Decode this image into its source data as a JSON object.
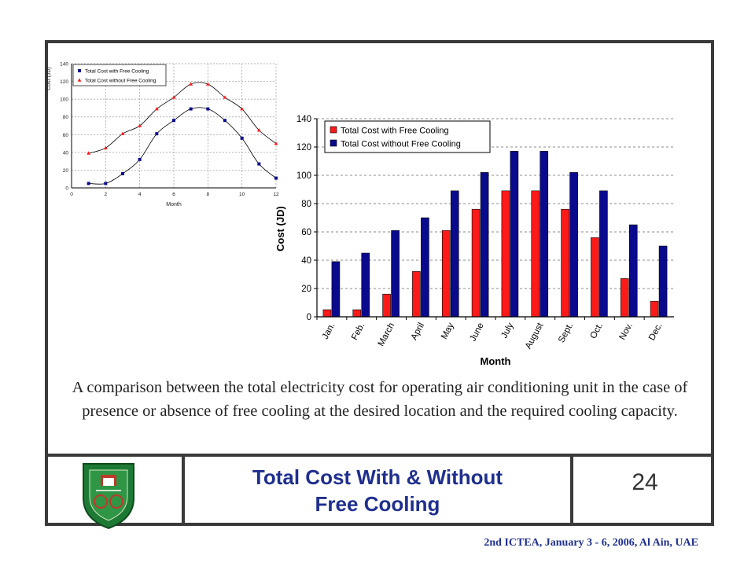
{
  "caption": "A comparison between the total electricity cost for operating air conditioning unit in the case of presence or absence of free cooling at the desired location and the required cooling capacity.",
  "footer": {
    "title_line1": "Total Cost With & Without",
    "title_line2": "Free Cooling",
    "page_number": "24",
    "conference": "2nd ICTEA, January 3 - 6, 2006, Al Ain, UAE"
  },
  "colors": {
    "red": "#ff1a1a",
    "navy": "#0a0a8c",
    "title_blue": "#1f2f8f",
    "logo_green": "#1d7a34"
  },
  "chart_data": [
    {
      "type": "scatter",
      "xlabel": "Month",
      "ylabel": "Cost (JD)",
      "xlim": [
        0,
        12
      ],
      "ylim": [
        0,
        140
      ],
      "xticks": [
        "0",
        "2",
        "4",
        "6",
        "8",
        "10",
        "12"
      ],
      "yticks": [
        "0",
        "20",
        "40",
        "60",
        "80",
        "100",
        "120",
        "140"
      ],
      "grid": true,
      "legend_position": "top-left",
      "series": [
        {
          "name": "Total Cost with Free Cooling",
          "color": "#0a0a8c",
          "marker": "square",
          "x": [
            1,
            2,
            3,
            4,
            5,
            6,
            7,
            8,
            9,
            10,
            11,
            12
          ],
          "y": [
            5,
            5,
            16,
            32,
            61,
            76,
            89,
            89,
            76,
            56,
            27,
            11
          ]
        },
        {
          "name": "Total Cost without Free Cooling",
          "color": "#ff1a1a",
          "marker": "triangle",
          "x": [
            1,
            2,
            3,
            4,
            5,
            6,
            7,
            8,
            9,
            10,
            11,
            12
          ],
          "y": [
            39,
            45,
            61,
            70,
            89,
            102,
            117,
            117,
            102,
            89,
            65,
            50
          ]
        }
      ]
    },
    {
      "type": "bar",
      "xlabel": "Month",
      "ylabel": "Cost (JD)",
      "ylim": [
        0,
        140
      ],
      "yticks": [
        "0",
        "20",
        "40",
        "60",
        "80",
        "100",
        "120",
        "140"
      ],
      "grid": true,
      "legend_position": "top-left",
      "categories": [
        "Jan.",
        "Feb.",
        "March",
        "April",
        "May",
        "June",
        "July",
        "August",
        "Sept.",
        "Oct.",
        "Nov.",
        "Dec."
      ],
      "series": [
        {
          "name": "Total Cost with Free Cooling",
          "color": "#ff1a1a",
          "values": [
            5,
            5,
            16,
            32,
            61,
            76,
            89,
            89,
            76,
            56,
            27,
            11
          ]
        },
        {
          "name": "Total Cost without Free Cooling",
          "color": "#0a0a8c",
          "values": [
            39,
            45,
            61,
            70,
            89,
            102,
            117,
            117,
            102,
            89,
            65,
            50
          ]
        }
      ]
    }
  ]
}
